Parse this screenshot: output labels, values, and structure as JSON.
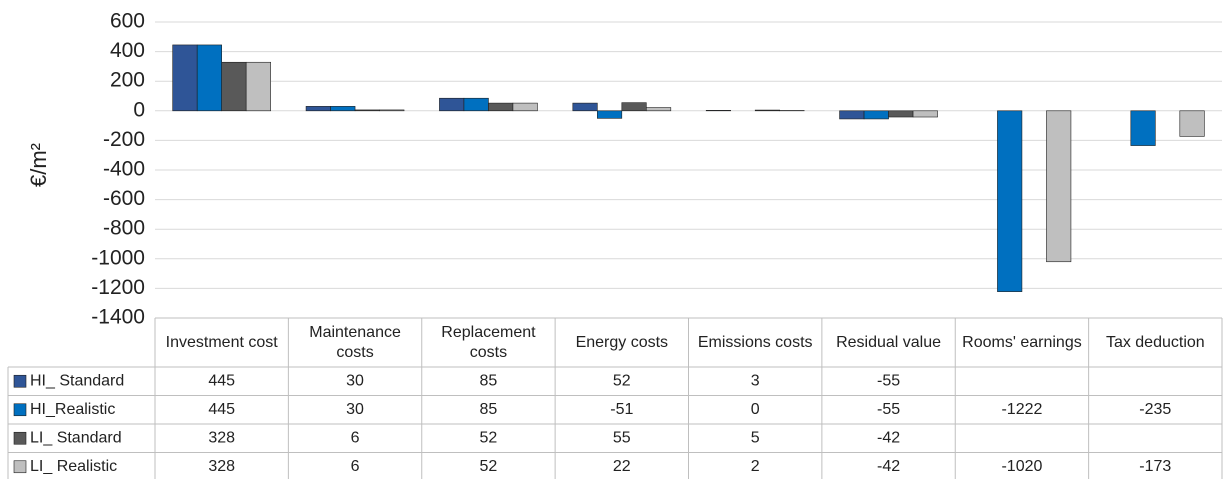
{
  "chart_data": {
    "type": "bar",
    "y_label": "€/m²",
    "categories": [
      "Investment cost",
      "Maintenance costs",
      "Replacement costs",
      "Energy costs",
      "Emissions costs",
      "Residual value",
      "Rooms' earnings",
      "Tax deduction"
    ],
    "series": [
      {
        "name": "HI_ Standard",
        "color": "#2f5597",
        "values": [
          445,
          30,
          85,
          52,
          3,
          -55,
          null,
          null
        ]
      },
      {
        "name": "HI_Realistic",
        "color": "#0070c0",
        "values": [
          445,
          30,
          85,
          -51,
          0,
          -55,
          -1222,
          -235
        ]
      },
      {
        "name": "LI_ Standard",
        "color": "#595959",
        "values": [
          328,
          6,
          52,
          55,
          5,
          -42,
          null,
          null
        ]
      },
      {
        "name": "LI_ Realistic",
        "color": "#bfbfbf",
        "values": [
          328,
          6,
          52,
          22,
          2,
          -42,
          -1020,
          -173
        ]
      }
    ],
    "ylim": [
      -1400,
      600
    ],
    "yticks": [
      -1400,
      -1200,
      -1000,
      -800,
      -600,
      -400,
      -200,
      0,
      200,
      400,
      600
    ],
    "grid": true
  }
}
